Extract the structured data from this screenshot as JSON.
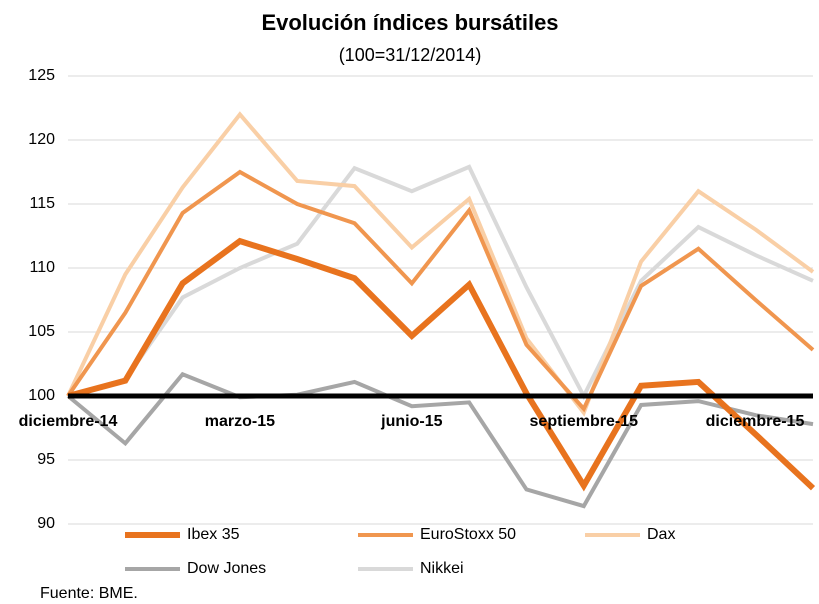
{
  "chart_data": {
    "type": "line",
    "title": "Evolución índices bursátiles",
    "subtitle": "(100=31/12/2014)",
    "source": "Fuente: BME.",
    "categories": [
      "diciembre-14",
      null,
      null,
      "marzo-15",
      null,
      null,
      "junio-15",
      null,
      null,
      "septiembre-15",
      null,
      null,
      "diciembre-15",
      null
    ],
    "series": [
      {
        "name": "Ibex 35",
        "color": "#e8731e",
        "values": [
          100,
          101.2,
          108.8,
          112.1,
          110.7,
          109.2,
          104.7,
          108.7,
          100.2,
          93.0,
          100.8,
          101.1,
          97.0,
          92.8
        ]
      },
      {
        "name": "EuroStoxx 50",
        "color": "#f0964f",
        "values": [
          100,
          106.5,
          114.3,
          117.5,
          115.0,
          113.5,
          108.8,
          114.5,
          104.0,
          99.0,
          108.6,
          111.5,
          107.5,
          103.6
        ]
      },
      {
        "name": "Dax",
        "color": "#f9cfa6",
        "values": [
          100,
          109.5,
          116.3,
          122.0,
          116.8,
          116.4,
          111.6,
          115.4,
          104.5,
          98.7,
          110.5,
          116.0,
          113.0,
          109.7
        ]
      },
      {
        "name": "Dow Jones",
        "color": "#a6a6a6",
        "values": [
          100,
          96.3,
          101.7,
          99.9,
          100.1,
          101.1,
          99.2,
          99.5,
          92.7,
          91.4,
          99.3,
          99.6,
          98.5,
          97.8
        ]
      },
      {
        "name": "Nikkei",
        "color": "#d9d9d9",
        "values": [
          100,
          101.3,
          107.7,
          110.0,
          111.9,
          117.8,
          116.0,
          117.9,
          108.5,
          100.0,
          109.0,
          113.2,
          111.0,
          109.0
        ]
      }
    ],
    "ylim": [
      90,
      125
    ],
    "yticks": [
      90,
      95,
      100,
      105,
      110,
      115,
      120,
      125
    ],
    "reference_line": 100,
    "grid": true
  }
}
